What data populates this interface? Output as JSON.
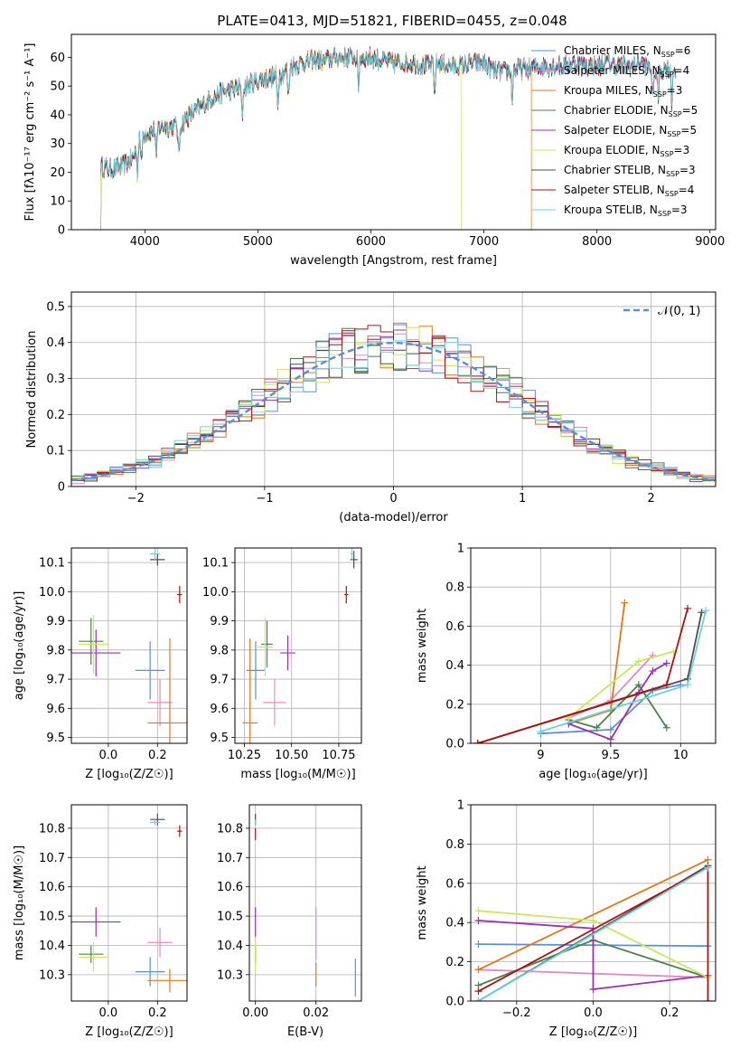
{
  "figure_title": "PLATE=0413, MJD=51821, FIBERID=0455, z=0.048",
  "colors": {
    "Chabrier MILES": "#5b8fd6",
    "Salpeter MILES": "#e78ac3",
    "Kroupa MILES": "#e6761d",
    "Chabrier ELODIE": "#4f7f4f",
    "Salpeter ELODIE": "#9b30b0",
    "Kroupa ELODIE": "#c9e85a",
    "Chabrier STELIB": "#4d4d4d",
    "Salpeter STELIB": "#b01010",
    "Kroupa STELIB": "#6fd0dc"
  },
  "chart_data": [
    {
      "id": "spectrum",
      "type": "line",
      "title": "PLATE=0413, MJD=51821, FIBERID=0455, z=0.048",
      "xlabel": "wavelength [Angstrom, rest frame]",
      "ylabel": "Flux [fλ10⁻¹⁷ erg cm⁻² s⁻¹ A⁻¹]",
      "xlim": [
        3350,
        9050
      ],
      "ylim": [
        0,
        68
      ],
      "xticks": [
        4000,
        5000,
        6000,
        7000,
        8000,
        9000
      ],
      "yticks": [
        0,
        10,
        20,
        30,
        40,
        50,
        60
      ],
      "grid": false,
      "legend_position": "top-right",
      "legend": [
        {
          "name": "Chabrier MILES",
          "nssp": "6"
        },
        {
          "name": "Salpeter MILES",
          "nssp": "4"
        },
        {
          "name": "Kroupa MILES",
          "nssp": "3"
        },
        {
          "name": "Chabrier ELODIE",
          "nssp": "5"
        },
        {
          "name": "Salpeter ELODIE",
          "nssp": "5"
        },
        {
          "name": "Kroupa ELODIE",
          "nssp": "3"
        },
        {
          "name": "Chabrier STELIB",
          "nssp": "3"
        },
        {
          "name": "Salpeter STELIB",
          "nssp": "4"
        },
        {
          "name": "Kroupa STELIB",
          "nssp": "3"
        }
      ],
      "continuum": [
        [
          3610,
          22
        ],
        [
          3700,
          21
        ],
        [
          3800,
          22
        ],
        [
          3900,
          25
        ],
        [
          3950,
          33
        ],
        [
          4050,
          34
        ],
        [
          4150,
          36
        ],
        [
          4300,
          36
        ],
        [
          4400,
          40
        ],
        [
          4500,
          43
        ],
        [
          4600,
          46
        ],
        [
          4700,
          48
        ],
        [
          4800,
          49
        ],
        [
          4900,
          50
        ],
        [
          5000,
          52
        ],
        [
          5100,
          53
        ],
        [
          5200,
          54
        ],
        [
          5300,
          57
        ],
        [
          5400,
          58
        ],
        [
          5500,
          59
        ],
        [
          5600,
          59
        ],
        [
          5700,
          60
        ],
        [
          5800,
          60
        ],
        [
          5900,
          60
        ],
        [
          6000,
          60
        ],
        [
          6100,
          59
        ],
        [
          6200,
          58
        ],
        [
          6300,
          58
        ],
        [
          6400,
          58
        ],
        [
          6500,
          57
        ],
        [
          6600,
          58
        ],
        [
          6700,
          57
        ],
        [
          6800,
          57
        ],
        [
          6900,
          58
        ],
        [
          7000,
          58
        ],
        [
          7100,
          55
        ],
        [
          7200,
          55
        ],
        [
          7300,
          56
        ],
        [
          7400,
          56
        ],
        [
          7500,
          57
        ],
        [
          7600,
          57
        ],
        [
          7700,
          57
        ],
        [
          7800,
          58
        ],
        [
          7900,
          57
        ],
        [
          8000,
          57
        ],
        [
          8100,
          58
        ],
        [
          8200,
          57
        ],
        [
          8300,
          57
        ],
        [
          8400,
          58
        ],
        [
          8500,
          55
        ],
        [
          8600,
          56
        ],
        [
          8700,
          56
        ]
      ],
      "absorption_lines": [
        3934,
        3969,
        4102,
        4300,
        4861,
        5175,
        5270,
        5890,
        6563,
        7250,
        8498,
        8542,
        8662
      ],
      "endpoints": {
        "Kroupa MILES": 7420,
        "Kroupa ELODIE": 6800
      }
    },
    {
      "id": "residuals",
      "type": "histogram",
      "xlabel": "(data-model)/error",
      "ylabel": "Normed distribution",
      "xlim": [
        -2.5,
        2.5
      ],
      "ylim": [
        0,
        0.54
      ],
      "xticks": [
        -2,
        -1,
        0,
        1,
        2
      ],
      "yticks": [
        0,
        0.1,
        0.2,
        0.3,
        0.4,
        0.5
      ],
      "grid": true,
      "legend_position": "top-right",
      "reference_curve": "N(0,1)",
      "reference_label": "𝒩(0, 1)",
      "bin_width": 0.1
    },
    {
      "id": "age_vs_Z",
      "type": "errorbar",
      "xlabel": "Z [log₁₀(Z/Z☉)]",
      "ylabel": "age  [log₁₀(age/yr)]",
      "xlim": [
        -0.15,
        0.32
      ],
      "ylim": [
        9.48,
        10.15
      ],
      "xticks": [
        0.0,
        0.2
      ],
      "yticks": [
        9.5,
        9.6,
        9.7,
        9.8,
        9.9,
        10.0,
        10.1
      ],
      "grid": true,
      "points": [
        {
          "series": "Chabrier MILES",
          "x": 0.17,
          "y": 9.73,
          "xerr": 0.06,
          "yerr": 0.1
        },
        {
          "series": "Salpeter MILES",
          "x": 0.21,
          "y": 9.62,
          "xerr": 0.05,
          "yerr": 0.08
        },
        {
          "series": "Kroupa MILES",
          "x": 0.25,
          "y": 9.55,
          "xerr": 0.09,
          "yerr": 0.29
        },
        {
          "series": "Chabrier ELODIE",
          "x": -0.07,
          "y": 9.83,
          "xerr": 0.05,
          "yerr": 0.08
        },
        {
          "series": "Salpeter ELODIE",
          "x": -0.05,
          "y": 9.79,
          "xerr": 0.1,
          "yerr": 0.08
        },
        {
          "series": "Kroupa ELODIE",
          "x": -0.06,
          "y": 9.82,
          "xerr": 0.06,
          "yerr": 0.1
        },
        {
          "series": "Chabrier STELIB",
          "x": 0.2,
          "y": 10.11,
          "xerr": 0.03,
          "yerr": 0.02
        },
        {
          "series": "Salpeter STELIB",
          "x": 0.29,
          "y": 9.99,
          "xerr": 0.01,
          "yerr": 0.03
        },
        {
          "series": "Kroupa STELIB",
          "x": 0.19,
          "y": 10.13,
          "xerr": 0.02,
          "yerr": 0.02
        }
      ]
    },
    {
      "id": "age_vs_mass",
      "type": "errorbar",
      "xlabel": "mass [log₁₀(M/M☉)]",
      "ylabel": "",
      "xlim": [
        10.2,
        10.87
      ],
      "ylim": [
        9.48,
        10.15
      ],
      "xticks": [
        10.25,
        10.5,
        10.75
      ],
      "yticks": [
        9.5,
        9.6,
        9.7,
        9.8,
        9.9,
        10.0,
        10.1
      ],
      "grid": true,
      "points": [
        {
          "series": "Chabrier MILES",
          "x": 10.31,
          "y": 9.73,
          "xerr": 0.05,
          "yerr": 0.1
        },
        {
          "series": "Salpeter MILES",
          "x": 10.41,
          "y": 9.62,
          "xerr": 0.06,
          "yerr": 0.08
        },
        {
          "series": "Kroupa MILES",
          "x": 10.28,
          "y": 9.55,
          "xerr": 0.04,
          "yerr": 0.29
        },
        {
          "series": "Chabrier ELODIE",
          "x": 10.37,
          "y": 9.82,
          "xerr": 0.03,
          "yerr": 0.08
        },
        {
          "series": "Salpeter ELODIE",
          "x": 10.48,
          "y": 9.79,
          "xerr": 0.04,
          "yerr": 0.06
        },
        {
          "series": "Kroupa ELODIE",
          "x": 10.36,
          "y": 9.81,
          "xerr": 0.04,
          "yerr": 0.1
        },
        {
          "series": "Chabrier STELIB",
          "x": 10.83,
          "y": 10.11,
          "xerr": 0.02,
          "yerr": 0.03
        },
        {
          "series": "Salpeter STELIB",
          "x": 10.79,
          "y": 9.99,
          "xerr": 0.01,
          "yerr": 0.03
        },
        {
          "series": "Kroupa STELIB",
          "x": 10.82,
          "y": 10.13,
          "xerr": 0.01,
          "yerr": 0.02
        }
      ]
    },
    {
      "id": "mass_weight_vs_age",
      "type": "line",
      "xlabel": "age  [log₁₀(age/yr)]",
      "ylabel": "mass weight",
      "xlim": [
        8.5,
        10.25
      ],
      "ylim": [
        0,
        1
      ],
      "xticks": [
        9.0,
        9.5,
        10.0
      ],
      "yticks": [
        0,
        0.2,
        0.4,
        0.6,
        0.8,
        1.0
      ],
      "grid": true,
      "series": [
        {
          "name": "Chabrier MILES",
          "x": [
            9.0,
            9.5,
            9.8,
            10.0
          ],
          "y": [
            0.05,
            0.07,
            0.27,
            0.3
          ]
        },
        {
          "name": "Salpeter MILES",
          "x": [
            9.2,
            9.5,
            9.8
          ],
          "y": [
            0.13,
            0.22,
            0.45
          ]
        },
        {
          "name": "Kroupa MILES",
          "x": [
            9.2,
            9.5,
            9.6
          ],
          "y": [
            0.1,
            0.17,
            0.72
          ]
        },
        {
          "name": "Chabrier ELODIE",
          "x": [
            9.2,
            9.4,
            9.7,
            9.9
          ],
          "y": [
            0.12,
            0.08,
            0.3,
            0.08
          ]
        },
        {
          "name": "Salpeter ELODIE",
          "x": [
            9.2,
            9.5,
            9.7,
            9.8,
            9.9
          ],
          "y": [
            0.1,
            0.02,
            0.26,
            0.37,
            0.41
          ]
        },
        {
          "name": "Kroupa ELODIE",
          "x": [
            9.2,
            9.7,
            9.95
          ],
          "y": [
            0.13,
            0.42,
            0.47
          ]
        },
        {
          "name": "Chabrier STELIB",
          "x": [
            8.55,
            10.05,
            10.15
          ],
          "y": [
            0.0,
            0.33,
            0.67
          ]
        },
        {
          "name": "Salpeter STELIB",
          "x": [
            8.55,
            9.9,
            10.05
          ],
          "y": [
            0.0,
            0.3,
            0.69
          ]
        },
        {
          "name": "Kroupa STELIB",
          "x": [
            9.0,
            10.05,
            10.18
          ],
          "y": [
            0.06,
            0.3,
            0.68
          ]
        }
      ]
    },
    {
      "id": "mass_vs_Z",
      "type": "errorbar",
      "xlabel": "Z [log₁₀(Z/Z☉)]",
      "ylabel": "mass [log₁₀(M/M☉)]",
      "xlim": [
        -0.15,
        0.32
      ],
      "ylim": [
        10.21,
        10.88
      ],
      "xticks": [
        0.0,
        0.2
      ],
      "yticks": [
        10.3,
        10.4,
        10.5,
        10.6,
        10.7,
        10.8
      ],
      "grid": true,
      "points": [
        {
          "series": "Chabrier MILES",
          "x": 0.17,
          "y": 10.31,
          "xerr": 0.06,
          "yerr": 0.05
        },
        {
          "series": "Salpeter MILES",
          "x": 0.21,
          "y": 10.41,
          "xerr": 0.05,
          "yerr": 0.05
        },
        {
          "series": "Kroupa MILES",
          "x": 0.25,
          "y": 10.28,
          "xerr": 0.09,
          "yerr": 0.04
        },
        {
          "series": "Chabrier ELODIE",
          "x": -0.07,
          "y": 10.37,
          "xerr": 0.05,
          "yerr": 0.03
        },
        {
          "series": "Salpeter ELODIE",
          "x": -0.05,
          "y": 10.48,
          "xerr": 0.1,
          "yerr": 0.05
        },
        {
          "series": "Kroupa ELODIE",
          "x": -0.06,
          "y": 10.36,
          "xerr": 0.06,
          "yerr": 0.05
        },
        {
          "series": "Chabrier STELIB",
          "x": 0.2,
          "y": 10.83,
          "xerr": 0.03,
          "yerr": 0.02
        },
        {
          "series": "Salpeter STELIB",
          "x": 0.29,
          "y": 10.79,
          "xerr": 0.01,
          "yerr": 0.02
        },
        {
          "series": "Kroupa STELIB",
          "x": 0.19,
          "y": 10.82,
          "xerr": 0.02,
          "yerr": 0.01
        }
      ]
    },
    {
      "id": "mass_vs_EBV",
      "type": "errorbar",
      "xlabel": "E(B-V)",
      "ylabel": "",
      "xlim": [
        -0.002,
        0.035
      ],
      "ylim": [
        10.21,
        10.88
      ],
      "xticks": [
        0.0,
        0.02
      ],
      "yticks": [
        10.3,
        10.4,
        10.5,
        10.6,
        10.7,
        10.8
      ],
      "grid": true,
      "points": [
        {
          "series": "Chabrier MILES",
          "x": 0.033,
          "y": 10.29,
          "xerr": 0.0,
          "yerr": 0.065
        },
        {
          "series": "Salpeter MILES",
          "x": 0.02,
          "y": 10.44,
          "xerr": 0.0,
          "yerr": 0.09
        },
        {
          "series": "Kroupa MILES",
          "x": 0.02,
          "y": 10.3,
          "xerr": 0.0,
          "yerr": 0.04
        },
        {
          "series": "Chabrier ELODIE",
          "x": 0.0,
          "y": 10.37,
          "xerr": 0.0,
          "yerr": 0.03
        },
        {
          "series": "Salpeter ELODIE",
          "x": 0.0,
          "y": 10.48,
          "xerr": 0.0,
          "yerr": 0.05
        },
        {
          "series": "Kroupa ELODIE",
          "x": 0.0,
          "y": 10.36,
          "xerr": 0.0,
          "yerr": 0.05
        },
        {
          "series": "Chabrier STELIB",
          "x": 0.0,
          "y": 10.83,
          "xerr": 0.0,
          "yerr": 0.02
        },
        {
          "series": "Salpeter STELIB",
          "x": 0.0,
          "y": 10.78,
          "xerr": 0.0,
          "yerr": 0.02
        },
        {
          "series": "Kroupa STELIB",
          "x": 0.0,
          "y": 10.82,
          "xerr": 0.0,
          "yerr": 0.01
        }
      ]
    },
    {
      "id": "mass_weight_vs_Z",
      "type": "line",
      "xlabel": "Z [log₁₀(Z/Z☉)]",
      "ylabel": "mass weight",
      "xlim": [
        -0.32,
        0.32
      ],
      "ylim": [
        0,
        1
      ],
      "xticks": [
        -0.2,
        0.0,
        0.2
      ],
      "yticks": [
        0,
        0.2,
        0.4,
        0.6,
        0.8,
        1.0
      ],
      "grid": true,
      "series": [
        {
          "name": "Chabrier MILES",
          "x": [
            -0.3,
            0.3
          ],
          "y": [
            0.29,
            0.28
          ]
        },
        {
          "name": "Salpeter MILES",
          "x": [
            -0.3,
            0.3
          ],
          "y": [
            0.16,
            0.12
          ]
        },
        {
          "name": "Kroupa MILES",
          "x": [
            -0.3,
            0.3
          ],
          "y": [
            0.16,
            0.72
          ]
        },
        {
          "name": "Chabrier ELODIE",
          "x": [
            -0.3,
            0.0,
            0.3
          ],
          "y": [
            0.08,
            0.31,
            0.12
          ]
        },
        {
          "name": "Salpeter ELODIE",
          "x": [
            -0.3,
            0.0,
            0.0,
            0.3
          ],
          "y": [
            0.41,
            0.37,
            0.06,
            0.13
          ]
        },
        {
          "name": "Kroupa ELODIE",
          "x": [
            -0.3,
            0.0,
            0.3
          ],
          "y": [
            0.46,
            0.41,
            0.12
          ]
        },
        {
          "name": "Chabrier STELIB",
          "x": [
            -0.3,
            0.3
          ],
          "y": [
            0.0,
            0.69
          ]
        },
        {
          "name": "Salpeter STELIB",
          "x": [
            -0.3,
            0.3,
            0.3
          ],
          "y": [
            0.05,
            0.68,
            0.0
          ]
        },
        {
          "name": "Kroupa STELIB",
          "x": [
            -0.3,
            0.3
          ],
          "y": [
            0.0,
            0.68
          ]
        }
      ]
    }
  ]
}
